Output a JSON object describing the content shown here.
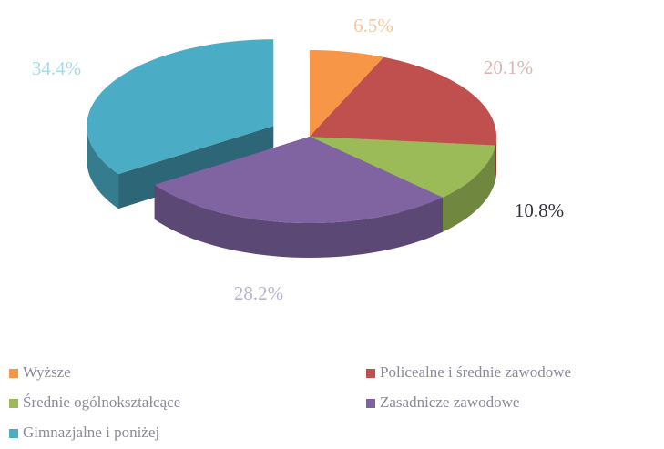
{
  "chart_data": {
    "type": "pie",
    "three_d": true,
    "categories": [
      "Wyższe",
      "Policealne i średnie zawodowe",
      "Średnie ogólnokształcące",
      "Zasadnicze zawodowe",
      "Gimnazjalne i poniżej"
    ],
    "values": [
      6.5,
      20.1,
      10.8,
      28.2,
      34.4
    ],
    "value_labels": [
      "6.5%",
      "20.1%",
      "10.8%",
      "28.2%",
      "34.4%"
    ],
    "colors": [
      "#f79646",
      "#c0504d",
      "#9bbb59",
      "#8064a2",
      "#4bacc6"
    ],
    "exploded": [
      4
    ],
    "legend": "bottom"
  }
}
